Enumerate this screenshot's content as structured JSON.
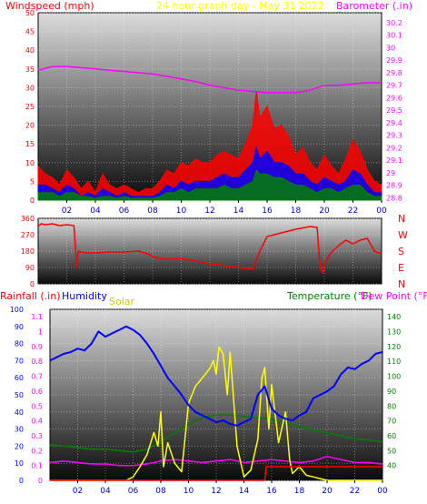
{
  "chart_data": [
    {
      "id": "wind_baro",
      "type": "line",
      "title": "24 hour graph day - May 31 2022",
      "left_axis_label": "Windspeed (mph)",
      "right_axis_label": "Barometer (.in)",
      "left_ticks": [
        0,
        5,
        10,
        15,
        20,
        25,
        30,
        35,
        40,
        45,
        50
      ],
      "right_ticks": [
        "28.8",
        "28.9",
        "29",
        "29.1",
        "29.2",
        "29.3",
        "29.4",
        "29.5",
        "29.6",
        "29.7",
        "29.8",
        "29.9",
        "30",
        "30.1",
        "30.2"
      ],
      "x_ticks": [
        "02",
        "04",
        "06",
        "08",
        "10",
        "12",
        "14",
        "16",
        "18",
        "20",
        "22",
        "00"
      ],
      "ylim_left": [
        0,
        50
      ],
      "ylim_right": [
        28.78,
        30.28
      ],
      "series": [
        {
          "key": "barometer",
          "axis": "right",
          "x": [
            0,
            1,
            2,
            3,
            4,
            5,
            6,
            7,
            8,
            9,
            10,
            11,
            12,
            13,
            14,
            15,
            16,
            17,
            18,
            18.5,
            19,
            19.5,
            20,
            21,
            22,
            23,
            24
          ],
          "values": [
            29.82,
            29.85,
            29.85,
            29.84,
            29.83,
            29.82,
            29.81,
            29.8,
            29.79,
            29.77,
            29.75,
            29.73,
            29.7,
            29.68,
            29.66,
            29.65,
            29.64,
            29.64,
            29.64,
            29.65,
            29.66,
            29.68,
            29.7,
            29.7,
            29.71,
            29.72,
            29.72
          ]
        },
        {
          "key": "gust",
          "axis": "left",
          "x": [
            0,
            0.5,
            1,
            1.5,
            2,
            2.5,
            3,
            3.5,
            4,
            4.5,
            5,
            5.5,
            6,
            6.5,
            7,
            7.5,
            8,
            8.5,
            9,
            9.5,
            10,
            10.5,
            11,
            11.5,
            12,
            12.5,
            13,
            13.5,
            14,
            14.5,
            15,
            15.25,
            15.5,
            16,
            16.5,
            17,
            17.5,
            18,
            18.5,
            19,
            19.5,
            20,
            20.5,
            21,
            21.5,
            22,
            22.5,
            23,
            23.5,
            24
          ],
          "values": [
            9,
            7,
            6,
            4,
            8,
            6,
            3,
            5,
            2,
            7,
            4,
            3,
            4,
            3,
            2,
            3,
            3,
            5,
            8,
            7,
            10,
            9,
            11,
            10,
            10,
            12,
            13,
            12,
            11,
            15,
            20,
            29,
            22,
            25,
            19,
            20,
            17,
            12,
            14,
            10,
            8,
            12,
            9,
            7,
            11,
            16,
            13,
            8,
            5,
            4
          ]
        },
        {
          "key": "wind",
          "axis": "left",
          "x": [
            0,
            0.5,
            1,
            1.5,
            2,
            2.5,
            3,
            3.5,
            4,
            4.5,
            5,
            5.5,
            6,
            6.5,
            7,
            7.5,
            8,
            8.5,
            9,
            9.5,
            10,
            10.5,
            11,
            11.5,
            12,
            12.5,
            13,
            13.5,
            14,
            14.5,
            15,
            15.25,
            15.5,
            16,
            16.5,
            17,
            17.5,
            18,
            18.5,
            19,
            19.5,
            20,
            20.5,
            21,
            21.5,
            22,
            22.5,
            23,
            23.5,
            24
          ],
          "values": [
            4,
            4,
            3,
            2,
            4,
            3,
            1,
            2,
            1,
            3,
            2,
            1,
            2,
            1,
            1,
            1,
            1,
            2,
            4,
            3,
            5,
            4,
            5,
            5,
            5,
            6,
            7,
            6,
            6,
            8,
            10,
            14,
            11,
            13,
            10,
            10,
            9,
            7,
            7,
            5,
            4,
            6,
            5,
            4,
            5,
            8,
            7,
            4,
            2,
            2
          ]
        },
        {
          "key": "avg",
          "axis": "left",
          "x": [
            0,
            0.5,
            1,
            1.5,
            2,
            2.5,
            3,
            3.5,
            4,
            4.5,
            5,
            5.5,
            6,
            6.5,
            7,
            7.5,
            8,
            8.5,
            9,
            9.5,
            10,
            10.5,
            11,
            11.5,
            12,
            12.5,
            13,
            13.5,
            14,
            14.5,
            15,
            15.25,
            15.5,
            16,
            16.5,
            17,
            17.5,
            18,
            18.5,
            19,
            19.5,
            20,
            20.5,
            21,
            21.5,
            22,
            22.5,
            23,
            23.5,
            24
          ],
          "values": [
            2,
            2,
            2,
            1,
            2,
            2,
            1,
            1,
            0.5,
            1,
            1,
            0.5,
            1,
            0.5,
            0.5,
            0.5,
            0.5,
            1,
            2,
            2,
            3,
            2,
            3,
            3,
            3,
            3,
            4,
            3,
            3,
            4,
            5,
            8,
            7,
            7,
            6,
            6,
            5,
            4,
            4,
            3,
            2,
            3,
            3,
            2,
            3,
            4,
            4,
            2,
            1,
            1
          ]
        }
      ]
    },
    {
      "id": "direction",
      "type": "line",
      "left_ticks": [
        0,
        90,
        180,
        270,
        360
      ],
      "right_labels": [
        "N",
        "W",
        "S",
        "E",
        "N"
      ],
      "ylim": [
        0,
        360
      ],
      "series": [
        {
          "key": "direction",
          "x": [
            0,
            0.2,
            0.5,
            1,
            1.5,
            2,
            2.5,
            2.7,
            2.8,
            3,
            3.5,
            4,
            5,
            6,
            7,
            7.5,
            7.8,
            8,
            8.5,
            9,
            10,
            11,
            12,
            13,
            14,
            14.5,
            15,
            15.5,
            16,
            17,
            18,
            19,
            19.5,
            19.7,
            19.9,
            20,
            20.5,
            21,
            21.5,
            22,
            22.5,
            23,
            23.5,
            24
          ],
          "values": [
            315,
            330,
            325,
            330,
            320,
            325,
            320,
            90,
            180,
            175,
            170,
            170,
            175,
            175,
            180,
            170,
            160,
            150,
            140,
            135,
            140,
            125,
            110,
            100,
            90,
            85,
            80,
            180,
            260,
            280,
            300,
            315,
            310,
            90,
            60,
            110,
            175,
            210,
            240,
            220,
            240,
            250,
            180,
            165
          ]
        }
      ]
    },
    {
      "id": "rain_hum_temp",
      "type": "line",
      "labels": {
        "rainfall": "Rainfall (.in)",
        "humidity": "Humidity",
        "solar": "Solar",
        "temperature": "Temperature (°F)",
        "dewpoint": "Dew Point (°F)"
      },
      "left_ticks_humidity": [
        0,
        10,
        20,
        30,
        40,
        50,
        60,
        70,
        80,
        90,
        100
      ],
      "left_ticks_rain": [
        "0",
        "0.1",
        "0.2",
        "0.3",
        "0.4",
        "0.5",
        "0.6",
        "0.7",
        "0.8",
        "0.9",
        "1",
        "1.1"
      ],
      "right_ticks_temp": [
        40,
        50,
        60,
        70,
        80,
        90,
        100,
        110,
        120,
        130,
        140
      ],
      "x_ticks": [
        "02",
        "04",
        "06",
        "08",
        "10",
        "12",
        "14",
        "16",
        "18",
        "20",
        "22",
        "00"
      ],
      "ylim_humidity": [
        0,
        100
      ],
      "ylim_temp": [
        30,
        145
      ],
      "series": [
        {
          "key": "humidity",
          "axis": "humidity",
          "x": [
            0,
            0.5,
            1,
            1.5,
            2,
            2.5,
            3,
            3.5,
            4,
            4.5,
            5,
            5.5,
            6,
            6.5,
            7,
            7.5,
            8,
            8.5,
            9,
            9.5,
            10,
            10.5,
            11,
            11.5,
            12,
            12.5,
            13,
            13.5,
            14,
            14.5,
            15,
            15.5,
            16,
            16.5,
            17,
            17.5,
            18,
            18.5,
            19,
            19.5,
            20,
            20.5,
            21,
            21.5,
            22,
            22.5,
            23,
            23.5,
            24
          ],
          "values": [
            70,
            72,
            74,
            75,
            77,
            76,
            80,
            87,
            84,
            86,
            88,
            90,
            88,
            85,
            80,
            74,
            67,
            60,
            55,
            50,
            44,
            40,
            38,
            36,
            34,
            35,
            33,
            32,
            34,
            36,
            50,
            55,
            42,
            38,
            36,
            35,
            38,
            40,
            48,
            50,
            52,
            55,
            62,
            66,
            65,
            68,
            70,
            74,
            75
          ]
        },
        {
          "key": "temperature",
          "axis": "temp",
          "x": [
            0,
            1,
            2,
            3,
            4,
            5,
            6,
            7,
            8,
            9,
            10,
            11,
            12,
            13,
            14,
            15,
            16,
            17,
            18,
            19,
            20,
            21,
            22,
            23,
            24
          ],
          "values": [
            54,
            53,
            52,
            51,
            51,
            50,
            49,
            51,
            56,
            62,
            68,
            72,
            74,
            74,
            73,
            72,
            71,
            69,
            66,
            64,
            62,
            60,
            58,
            57,
            56
          ]
        },
        {
          "key": "dewpoint",
          "axis": "temp",
          "x": [
            0,
            1,
            2,
            3,
            4,
            5,
            6,
            7,
            8,
            9,
            10,
            11,
            12,
            13,
            14,
            15,
            16,
            17,
            18,
            19,
            20,
            21,
            22,
            23,
            24
          ],
          "values": [
            42,
            43,
            42,
            41,
            41,
            40,
            40,
            41,
            43,
            44,
            43,
            42,
            43,
            44,
            42,
            43,
            44,
            43,
            42,
            43,
            46,
            44,
            42,
            42,
            41
          ]
        },
        {
          "key": "solar",
          "axis": "humidity",
          "x": [
            0,
            5,
            5.5,
            6,
            6.5,
            7,
            7.5,
            7.8,
            8,
            8.2,
            8.5,
            9,
            9.5,
            10,
            10.5,
            11,
            11.5,
            11.8,
            12,
            12.2,
            12.5,
            12.8,
            13,
            13.5,
            14,
            14.5,
            15,
            15.3,
            15.5,
            15.8,
            16,
            16.5,
            17,
            17.3,
            17.5,
            18,
            18.5,
            19,
            19.5,
            20,
            20.5,
            21,
            24
          ],
          "values": [
            0,
            0,
            0,
            2,
            8,
            15,
            28,
            20,
            40,
            8,
            22,
            10,
            5,
            45,
            55,
            60,
            65,
            70,
            62,
            78,
            74,
            50,
            75,
            20,
            2,
            6,
            24,
            60,
            66,
            30,
            56,
            22,
            40,
            12,
            4,
            8,
            3,
            2,
            1,
            0,
            0,
            0,
            0
          ]
        },
        {
          "key": "rainfall",
          "axis": "humidity",
          "x": [
            0,
            15.5,
            15.6,
            24
          ],
          "values": [
            0,
            0,
            8,
            8
          ]
        }
      ]
    }
  ]
}
